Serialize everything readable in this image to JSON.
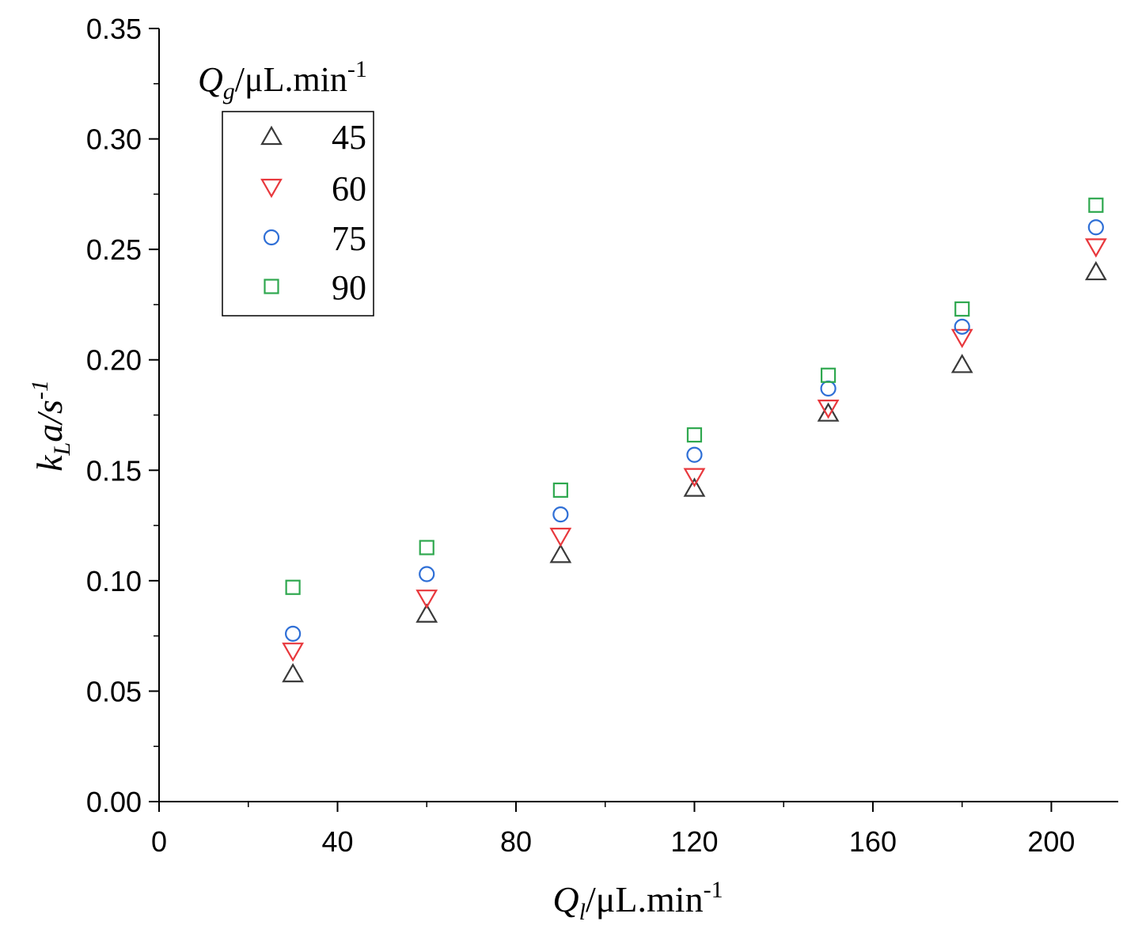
{
  "chart_data": {
    "type": "scatter",
    "title": "",
    "xlabel": {
      "main": "Q",
      "sub": "l",
      "unit": "/μL.min",
      "exp": "-1"
    },
    "ylabel": {
      "main": "k",
      "sub": "L",
      "mid": "a/s",
      "exp": "-1"
    },
    "xlim": [
      0,
      215
    ],
    "ylim": [
      0,
      0.35
    ],
    "x_ticks": [
      {
        "value": 0,
        "label": "0"
      },
      {
        "value": 40,
        "label": "40"
      },
      {
        "value": 80,
        "label": "80"
      },
      {
        "value": 120,
        "label": "120"
      },
      {
        "value": 160,
        "label": "160"
      },
      {
        "value": 200,
        "label": "200"
      }
    ],
    "x_minor_ticks": [
      20,
      60,
      100,
      140,
      180
    ],
    "y_ticks": [
      {
        "value": 0,
        "label": "0.00"
      },
      {
        "value": 0.05,
        "label": "0.05"
      },
      {
        "value": 0.1,
        "label": "0.10"
      },
      {
        "value": 0.15,
        "label": "0.15"
      },
      {
        "value": 0.2,
        "label": "0.20"
      },
      {
        "value": 0.25,
        "label": "0.25"
      },
      {
        "value": 0.3,
        "label": "0.30"
      },
      {
        "value": 0.35,
        "label": "0.35"
      }
    ],
    "y_minor_ticks": [
      0.025,
      0.075,
      0.125,
      0.175,
      0.225,
      0.275,
      0.325
    ],
    "grid": false,
    "legend": {
      "position": "top-left",
      "title": {
        "main": "Q",
        "sub": "g",
        "unit": "/μL.min",
        "exp": "-1"
      }
    },
    "x": [
      30,
      60,
      90,
      120,
      150,
      180,
      210
    ],
    "series": [
      {
        "name": "45",
        "marker": "triangle-up",
        "color": "#3a3a3a",
        "values": [
          0.058,
          0.085,
          0.112,
          0.142,
          0.176,
          0.198,
          0.24
        ]
      },
      {
        "name": "60",
        "marker": "triangle-down",
        "color": "#e8383d",
        "values": [
          0.068,
          0.092,
          0.12,
          0.147,
          0.178,
          0.21,
          0.251
        ]
      },
      {
        "name": "75",
        "marker": "circle",
        "color": "#2f6fd6",
        "values": [
          0.076,
          0.103,
          0.13,
          0.157,
          0.187,
          0.215,
          0.26
        ]
      },
      {
        "name": "90",
        "marker": "square",
        "color": "#2fa84f",
        "values": [
          0.097,
          0.115,
          0.141,
          0.166,
          0.193,
          0.223,
          0.27
        ]
      }
    ]
  }
}
